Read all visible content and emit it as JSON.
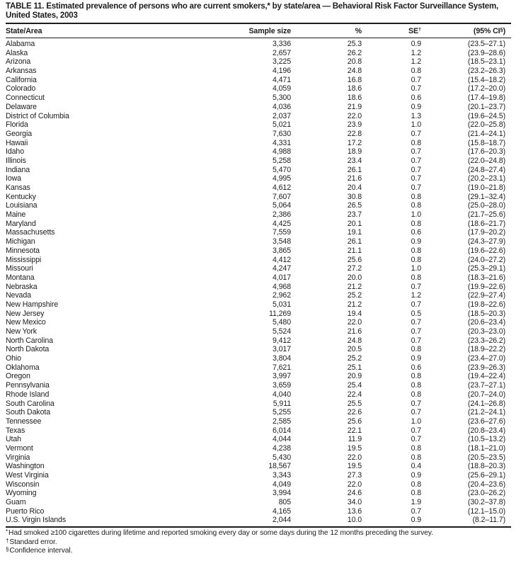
{
  "title": "TABLE 11. Estimated prevalence of persons who are current smokers,* by state/area — Behavioral Risk Factor Surveillance System, United States, 2003",
  "columns": {
    "state": "State/Area",
    "sample": "Sample size",
    "pct": "%",
    "se": "SE",
    "se_sup": "†",
    "ci_open": "(95% CI",
    "ci_sup": "§",
    "ci_close": ")"
  },
  "table": {
    "rows": [
      {
        "state": "Alabama",
        "sample": "3,336",
        "pct": "25.3",
        "se": "0.9",
        "ci": "(23.5–27.1)"
      },
      {
        "state": "Alaska",
        "sample": "2,657",
        "pct": "26.2",
        "se": "1.2",
        "ci": "(23.9–28.6)"
      },
      {
        "state": "Arizona",
        "sample": "3,225",
        "pct": "20.8",
        "se": "1.2",
        "ci": "(18.5–23.1)"
      },
      {
        "state": "Arkansas",
        "sample": "4,196",
        "pct": "24.8",
        "se": "0.8",
        "ci": "(23.2–26.3)"
      },
      {
        "state": "California",
        "sample": "4,471",
        "pct": "16.8",
        "se": "0.7",
        "ci": "(15.4–18.2)"
      },
      {
        "state": "Colorado",
        "sample": "4,059",
        "pct": "18.6",
        "se": "0.7",
        "ci": "(17.2–20.0)"
      },
      {
        "state": "Connecticut",
        "sample": "5,300",
        "pct": "18.6",
        "se": "0.6",
        "ci": "(17.4–19.8)"
      },
      {
        "state": "Delaware",
        "sample": "4,036",
        "pct": "21.9",
        "se": "0.9",
        "ci": "(20.1–23.7)"
      },
      {
        "state": "District of Columbia",
        "sample": "2,037",
        "pct": "22.0",
        "se": "1.3",
        "ci": "(19.6–24.5)"
      },
      {
        "state": "Florida",
        "sample": "5,021",
        "pct": "23.9",
        "se": "1.0",
        "ci": "(22.0–25.8)"
      },
      {
        "state": "Georgia",
        "sample": "7,630",
        "pct": "22.8",
        "se": "0.7",
        "ci": "(21.4–24.1)"
      },
      {
        "state": "Hawaii",
        "sample": "4,331",
        "pct": "17.2",
        "se": "0.8",
        "ci": "(15.8–18.7)"
      },
      {
        "state": "Idaho",
        "sample": "4,988",
        "pct": "18.9",
        "se": "0.7",
        "ci": "(17.6–20.3)"
      },
      {
        "state": "Illinois",
        "sample": "5,258",
        "pct": "23.4",
        "se": "0.7",
        "ci": "(22.0–24.8)"
      },
      {
        "state": "Indiana",
        "sample": "5,470",
        "pct": "26.1",
        "se": "0.7",
        "ci": "(24.8–27.4)"
      },
      {
        "state": "Iowa",
        "sample": "4,995",
        "pct": "21.6",
        "se": "0.7",
        "ci": "(20.2–23.1)"
      },
      {
        "state": "Kansas",
        "sample": "4,612",
        "pct": "20.4",
        "se": "0.7",
        "ci": "(19.0–21.8)"
      },
      {
        "state": "Kentucky",
        "sample": "7,607",
        "pct": "30.8",
        "se": "0.8",
        "ci": "(29.1–32.4)"
      },
      {
        "state": "Louisiana",
        "sample": "5,064",
        "pct": "26.5",
        "se": "0.8",
        "ci": "(25.0–28.0)"
      },
      {
        "state": "Maine",
        "sample": "2,386",
        "pct": "23.7",
        "se": "1.0",
        "ci": "(21.7–25.6)"
      },
      {
        "state": "Maryland",
        "sample": "4,425",
        "pct": "20.1",
        "se": "0.8",
        "ci": "(18.6–21.7)"
      },
      {
        "state": "Massachusetts",
        "sample": "7,559",
        "pct": "19.1",
        "se": "0.6",
        "ci": "(17.9–20.2)"
      },
      {
        "state": "Michigan",
        "sample": "3,548",
        "pct": "26.1",
        "se": "0.9",
        "ci": "(24.3–27.9)"
      },
      {
        "state": "Minnesota",
        "sample": "3,865",
        "pct": "21.1",
        "se": "0.8",
        "ci": "(19.6–22.6)"
      },
      {
        "state": "Mississippi",
        "sample": "4,412",
        "pct": "25.6",
        "se": "0.8",
        "ci": "(24.0–27.2)"
      },
      {
        "state": "Missouri",
        "sample": "4,247",
        "pct": "27.2",
        "se": "1.0",
        "ci": "(25.3–29.1)"
      },
      {
        "state": "Montana",
        "sample": "4,017",
        "pct": "20.0",
        "se": "0.8",
        "ci": "(18.3–21.6)"
      },
      {
        "state": "Nebraska",
        "sample": "4,968",
        "pct": "21.2",
        "se": "0.7",
        "ci": "(19.9–22.6)"
      },
      {
        "state": "Nevada",
        "sample": "2,962",
        "pct": "25.2",
        "se": "1.2",
        "ci": "(22.9–27.4)"
      },
      {
        "state": "New Hampshire",
        "sample": "5,031",
        "pct": "21.2",
        "se": "0.7",
        "ci": "(19.8–22.6)"
      },
      {
        "state": "New Jersey",
        "sample": "11,269",
        "pct": "19.4",
        "se": "0.5",
        "ci": "(18.5–20.3)"
      },
      {
        "state": "New Mexico",
        "sample": "5,480",
        "pct": "22.0",
        "se": "0.7",
        "ci": "(20.6–23.4)"
      },
      {
        "state": "New York",
        "sample": "5,524",
        "pct": "21.6",
        "se": "0.7",
        "ci": "(20.3–23.0)"
      },
      {
        "state": "North Carolina",
        "sample": "9,412",
        "pct": "24.8",
        "se": "0.7",
        "ci": "(23.3–26.2)"
      },
      {
        "state": "North Dakota",
        "sample": "3,017",
        "pct": "20.5",
        "se": "0.8",
        "ci": "(18.9–22.2)"
      },
      {
        "state": "Ohio",
        "sample": "3,804",
        "pct": "25.2",
        "se": "0.9",
        "ci": "(23.4–27.0)"
      },
      {
        "state": "Oklahoma",
        "sample": "7,621",
        "pct": "25.1",
        "se": "0.6",
        "ci": "(23.9–26.3)"
      },
      {
        "state": "Oregon",
        "sample": "3,997",
        "pct": "20.9",
        "se": "0.8",
        "ci": "(19.4–22.4)"
      },
      {
        "state": "Pennsylvania",
        "sample": "3,659",
        "pct": "25.4",
        "se": "0.8",
        "ci": "(23.7–27.1)"
      },
      {
        "state": "Rhode Island",
        "sample": "4,040",
        "pct": "22.4",
        "se": "0.8",
        "ci": "(20.7–24.0)"
      },
      {
        "state": "South Carolina",
        "sample": "5,911",
        "pct": "25.5",
        "se": "0.7",
        "ci": "(24.1–26.8)"
      },
      {
        "state": "South Dakota",
        "sample": "5,255",
        "pct": "22.6",
        "se": "0.7",
        "ci": "(21.2–24.1)"
      },
      {
        "state": "Tennessee",
        "sample": "2,585",
        "pct": "25.6",
        "se": "1.0",
        "ci": "(23.6–27.6)"
      },
      {
        "state": "Texas",
        "sample": "6,014",
        "pct": "22.1",
        "se": "0.7",
        "ci": "(20.8–23.4)"
      },
      {
        "state": "Utah",
        "sample": "4,044",
        "pct": "11.9",
        "se": "0.7",
        "ci": "(10.5–13.2)"
      },
      {
        "state": "Vermont",
        "sample": "4,238",
        "pct": "19.5",
        "se": "0.8",
        "ci": "(18.1–21.0)"
      },
      {
        "state": "Virginia",
        "sample": "5,430",
        "pct": "22.0",
        "se": "0.8",
        "ci": "(20.5–23.5)"
      },
      {
        "state": "Washington",
        "sample": "18,567",
        "pct": "19.5",
        "se": "0.4",
        "ci": "(18.8–20.3)"
      },
      {
        "state": "West Virginia",
        "sample": "3,343",
        "pct": "27.3",
        "se": "0.9",
        "ci": "(25.6–29.1)"
      },
      {
        "state": "Wisconsin",
        "sample": "4,049",
        "pct": "22.0",
        "se": "0.8",
        "ci": "(20.4–23.6)"
      },
      {
        "state": "Wyoming",
        "sample": "3,994",
        "pct": "24.6",
        "se": "0.8",
        "ci": "(23.0–26.2)"
      },
      {
        "state": "Guam",
        "sample": "805",
        "pct": "34.0",
        "se": "1.9",
        "ci": "(30.2–37.8)"
      },
      {
        "state": "Puerto Rico",
        "sample": "4,165",
        "pct": "13.6",
        "se": "0.7",
        "ci": "(12.1–15.0)"
      },
      {
        "state": "U.S. Virgin Islands",
        "sample": "2,044",
        "pct": "10.0",
        "se": "0.9",
        "ci": "(8.2–11.7)"
      }
    ]
  },
  "footnotes": [
    {
      "marker": "*",
      "text": "Had smoked ≥100 cigarettes during lifetime and reported smoking every day or some days during the 12 months preceding the survey."
    },
    {
      "marker": "†",
      "text": "Standard error."
    },
    {
      "marker": "§",
      "text": "Confidence interval."
    }
  ]
}
